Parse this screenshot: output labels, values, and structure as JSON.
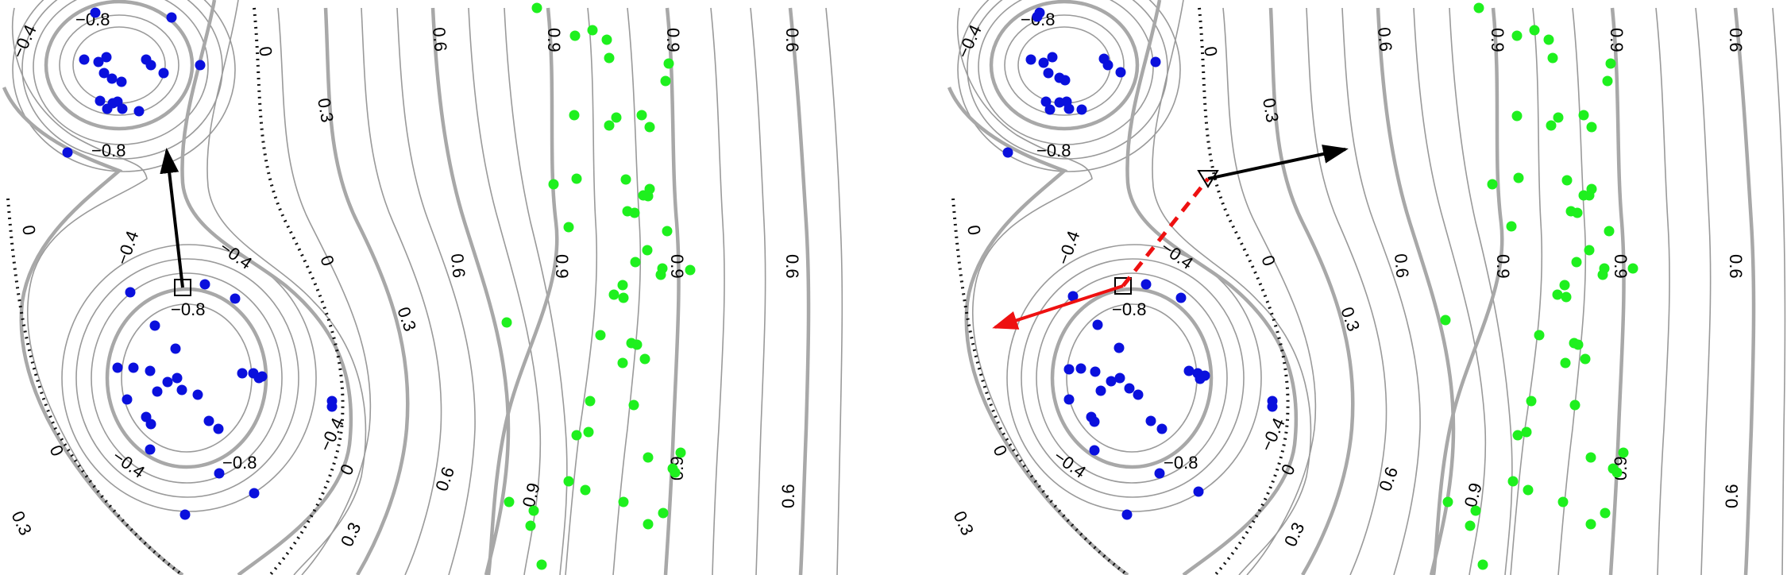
{
  "colors": {
    "class_a": "#0a10dd",
    "class_b": "#1ef01e",
    "contour": "#a8a8a8",
    "zero_contour": "#111111",
    "gradient_arrow": "#000000",
    "perturbation_arrow": "#ee1111"
  },
  "contour_labels": {
    "neg08": "−0.8",
    "neg04": "−0.4",
    "zero": "0",
    "pos03": "0.3",
    "pos06": "0.6",
    "pos09": "0.9"
  },
  "chart_data": [
    {
      "type": "scatter",
      "panel": "left",
      "title": "",
      "xlabel": "",
      "ylabel": "",
      "grid": false,
      "contour_levels": [
        -0.8,
        -0.4,
        0,
        0.3,
        0.6,
        0.9
      ],
      "series": [
        {
          "color": "blue",
          "points": [
            [
              120,
              16
            ],
            [
              216,
              22
            ],
            [
              106,
              75
            ],
            [
              124,
              78
            ],
            [
              134,
              72
            ],
            [
              184,
              75
            ],
            [
              190,
              82
            ],
            [
              206,
              92
            ],
            [
              131,
              92
            ],
            [
              141,
              99
            ],
            [
              153,
              103
            ],
            [
              126,
              127
            ],
            [
              142,
              130
            ],
            [
              148,
              128
            ],
            [
              135,
              137
            ],
            [
              154,
              137
            ],
            [
              175,
              140
            ],
            [
              252,
              82
            ],
            [
              85,
              192
            ],
            [
              258,
              358
            ],
            [
              296,
              376
            ],
            [
              164,
              368
            ],
            [
              195,
              410
            ],
            [
              221,
              439
            ],
            [
              148,
              463
            ],
            [
              168,
              463
            ],
            [
              189,
              467
            ],
            [
              305,
              470
            ],
            [
              319,
              470
            ],
            [
              330,
              474
            ],
            [
              326,
              476
            ],
            [
              223,
              476
            ],
            [
              211,
              481
            ],
            [
              229,
              491
            ],
            [
              418,
              505
            ],
            [
              160,
              503
            ],
            [
              418,
              512
            ],
            [
              249,
              497
            ],
            [
              198,
              493
            ],
            [
              184,
              525
            ],
            [
              190,
              534
            ],
            [
              263,
              530
            ],
            [
              275,
              540
            ],
            [
              189,
              566
            ],
            [
              276,
              596
            ],
            [
              320,
              621
            ],
            [
              233,
              648
            ]
          ]
        },
        {
          "color": "green",
          "points": [
            [
              676,
              10
            ],
            [
              724,
              45
            ],
            [
              746,
              38
            ],
            [
              764,
              50
            ],
            [
              767,
              73
            ],
            [
              842,
              80
            ],
            [
              838,
              102
            ],
            [
              723,
              145
            ],
            [
              776,
              148
            ],
            [
              767,
              158
            ],
            [
              808,
              145
            ],
            [
              818,
              160
            ],
            [
              697,
              232
            ],
            [
              726,
              225
            ],
            [
              788,
              226
            ],
            [
              818,
              238
            ],
            [
              816,
              247
            ],
            [
              790,
              266
            ],
            [
              799,
              268
            ],
            [
              810,
              246
            ],
            [
              716,
              286
            ],
            [
              840,
              291
            ],
            [
              815,
              315
            ],
            [
              800,
              330
            ],
            [
              834,
              338
            ],
            [
              832,
              346
            ],
            [
              869,
              340
            ],
            [
              784,
              359
            ],
            [
              773,
              371
            ],
            [
              785,
              375
            ],
            [
              638,
              406
            ],
            [
              756,
              422
            ],
            [
              795,
              432
            ],
            [
              802,
              434
            ],
            [
              812,
              452
            ],
            [
              784,
              457
            ],
            [
              743,
              505
            ],
            [
              798,
              510
            ],
            [
              741,
              544
            ],
            [
              726,
              548
            ],
            [
              857,
              570
            ],
            [
              816,
              576
            ],
            [
              850,
              595
            ],
            [
              847,
              590
            ],
            [
              716,
              606
            ],
            [
              641,
              632
            ],
            [
              737,
              617
            ],
            [
              785,
              632
            ],
            [
              672,
              643
            ],
            [
              668,
              662
            ],
            [
              835,
              646
            ],
            [
              816,
              660
            ],
            [
              682,
              711
            ]
          ]
        }
      ],
      "annotations": [
        {
          "type": "square_marker",
          "at": [
            230,
            362
          ]
        },
        {
          "type": "arrow",
          "color": "black",
          "from": [
            230,
            362
          ],
          "to": [
            210,
            190
          ]
        }
      ]
    },
    {
      "type": "scatter",
      "panel": "right",
      "title": "",
      "xlabel": "",
      "ylabel": "",
      "grid": false,
      "contour_levels": [
        -0.8,
        -0.4,
        0,
        0.3,
        0.6,
        0.9
      ],
      "series": [
        {
          "color": "blue",
          "points": [
            [
              1309,
              16
            ],
            [
              1306,
              21
            ],
            [
              1298,
              75
            ],
            [
              1314,
              79
            ],
            [
              1325,
              72
            ],
            [
              1390,
              74
            ],
            [
              1395,
              82
            ],
            [
              1411,
              91
            ],
            [
              1320,
              92
            ],
            [
              1334,
              98
            ],
            [
              1341,
              101
            ],
            [
              1317,
              128
            ],
            [
              1334,
              129
            ],
            [
              1343,
              128
            ],
            [
              1322,
              138
            ],
            [
              1346,
              137
            ],
            [
              1362,
              138
            ],
            [
              1455,
              78
            ],
            [
              1269,
              192
            ],
            [
              1443,
              358
            ],
            [
              1487,
              375
            ],
            [
              1351,
              373
            ],
            [
              1382,
              409
            ],
            [
              1409,
              438
            ],
            [
              1346,
              465
            ],
            [
              1361,
              464
            ],
            [
              1379,
              468
            ],
            [
              1497,
              467
            ],
            [
              1508,
              470
            ],
            [
              1517,
              473
            ],
            [
              1511,
              477
            ],
            [
              1410,
              476
            ],
            [
              1399,
              480
            ],
            [
              1422,
              489
            ],
            [
              1602,
              505
            ],
            [
              1346,
              503
            ],
            [
              1602,
              512
            ],
            [
              1433,
              497
            ],
            [
              1386,
              492
            ],
            [
              1374,
              525
            ],
            [
              1378,
              531
            ],
            [
              1449,
              530
            ],
            [
              1463,
              540
            ],
            [
              1378,
              567
            ],
            [
              1460,
              596
            ],
            [
              1509,
              619
            ],
            [
              1419,
              648
            ]
          ]
        },
        {
          "color": "green",
          "points": [
            [
              1862,
              10
            ],
            [
              1910,
              45
            ],
            [
              1932,
              38
            ],
            [
              1950,
              50
            ],
            [
              1955,
              73
            ],
            [
              2028,
              80
            ],
            [
              2024,
              102
            ],
            [
              1910,
              146
            ],
            [
              1962,
              148
            ],
            [
              1953,
              158
            ],
            [
              1994,
              145
            ],
            [
              2004,
              160
            ],
            [
              1879,
              232
            ],
            [
              1912,
              224
            ],
            [
              1973,
              227
            ],
            [
              2004,
              238
            ],
            [
              2001,
              246
            ],
            [
              1978,
              266
            ],
            [
              1986,
              268
            ],
            [
              1994,
              246
            ],
            [
              1903,
              285
            ],
            [
              2026,
              291
            ],
            [
              2001,
              315
            ],
            [
              1985,
              330
            ],
            [
              2020,
              338
            ],
            [
              2018,
              346
            ],
            [
              2056,
              338
            ],
            [
              1970,
              359
            ],
            [
              1961,
              371
            ],
            [
              1972,
              374
            ],
            [
              1820,
              403
            ],
            [
              1938,
              422
            ],
            [
              1982,
              432
            ],
            [
              1987,
              434
            ],
            [
              1996,
              452
            ],
            [
              1971,
              457
            ],
            [
              1928,
              505
            ],
            [
              1983,
              510
            ],
            [
              1922,
              544
            ],
            [
              1911,
              548
            ],
            [
              2044,
              570
            ],
            [
              2003,
              576
            ],
            [
              2036,
              595
            ],
            [
              2031,
              590
            ],
            [
              1905,
              606
            ],
            [
              1823,
              632
            ],
            [
              1924,
              617
            ],
            [
              1968,
              632
            ],
            [
              1858,
              643
            ],
            [
              1851,
              662
            ],
            [
              2021,
              646
            ],
            [
              2003,
              660
            ],
            [
              1867,
              711
            ]
          ]
        }
      ],
      "annotations": [
        {
          "type": "square_marker",
          "at": [
            1414,
            360
          ]
        },
        {
          "type": "triangle_marker",
          "at": [
            1521,
            225
          ]
        },
        {
          "type": "arrow",
          "color": "black",
          "from": [
            1521,
            225
          ],
          "to": [
            1694,
            188
          ]
        },
        {
          "type": "arrow",
          "color": "red",
          "from": [
            1414,
            360
          ],
          "to": [
            1253,
            412
          ]
        },
        {
          "type": "dashed_line",
          "color": "red",
          "from": [
            1414,
            360
          ],
          "to": [
            1521,
            225
          ]
        }
      ]
    }
  ]
}
